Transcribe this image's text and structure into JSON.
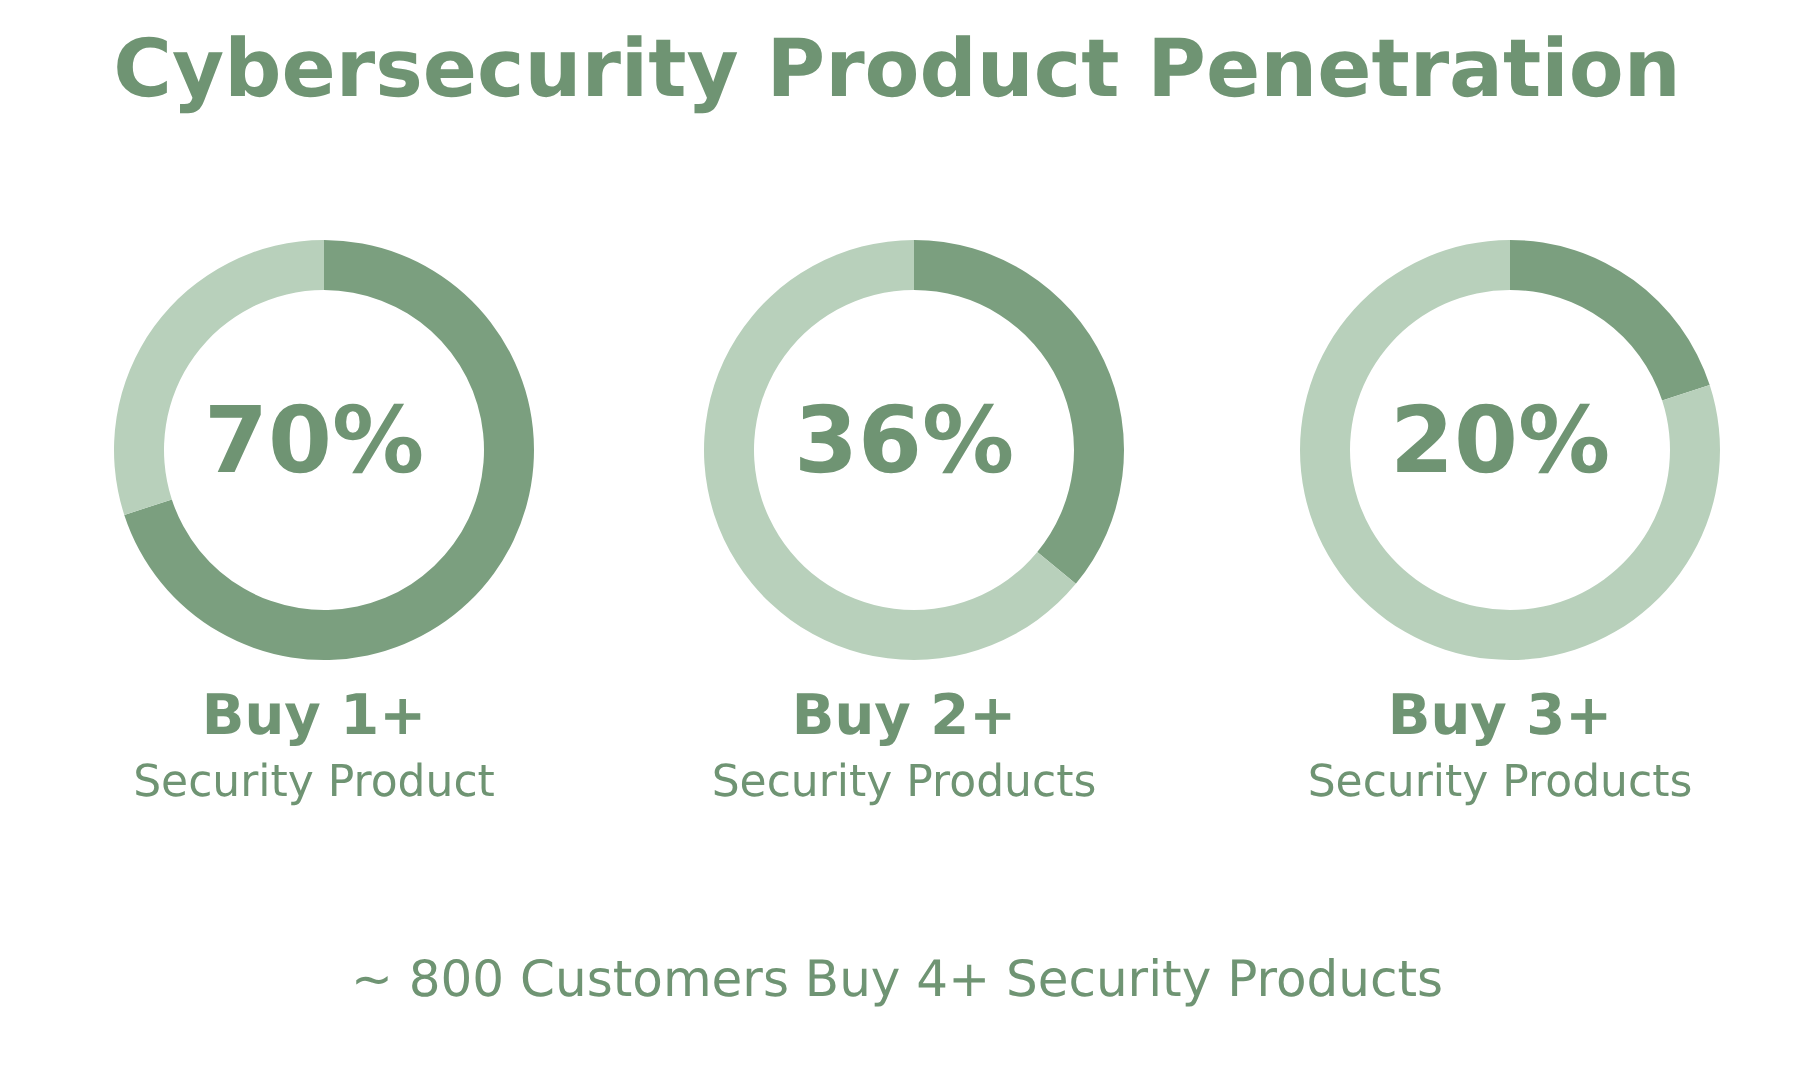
{
  "chart_data": [
    {
      "type": "other",
      "title": "Cybersecurity Product Penetration"
    },
    {
      "type": "donut",
      "title": "Buy 1+",
      "subtitle": "Security Product",
      "categories": [
        null,
        null
      ],
      "values": [
        70,
        30
      ],
      "annotations": [
        "70%"
      ],
      "colors": [
        "#7b9f7f",
        "#b8d0bb"
      ]
    },
    {
      "type": "donut",
      "title": "Buy 2+",
      "subtitle": "Security Products",
      "categories": [
        null,
        null
      ],
      "values": [
        36,
        64
      ],
      "annotations": [
        "36%"
      ],
      "colors": [
        "#7b9f7f",
        "#b8d0bb"
      ]
    },
    {
      "type": "donut",
      "title": "Buy 3+",
      "subtitle": "Security Products",
      "categories": [
        null,
        null
      ],
      "values": [
        20,
        80
      ],
      "annotations": [
        "20%"
      ],
      "colors": [
        "#7b9f7f",
        "#b8d0bb"
      ]
    },
    {
      "type": "other",
      "annotations": [
        "~ 800 Customers Buy 4+ Security Products"
      ]
    }
  ]
}
